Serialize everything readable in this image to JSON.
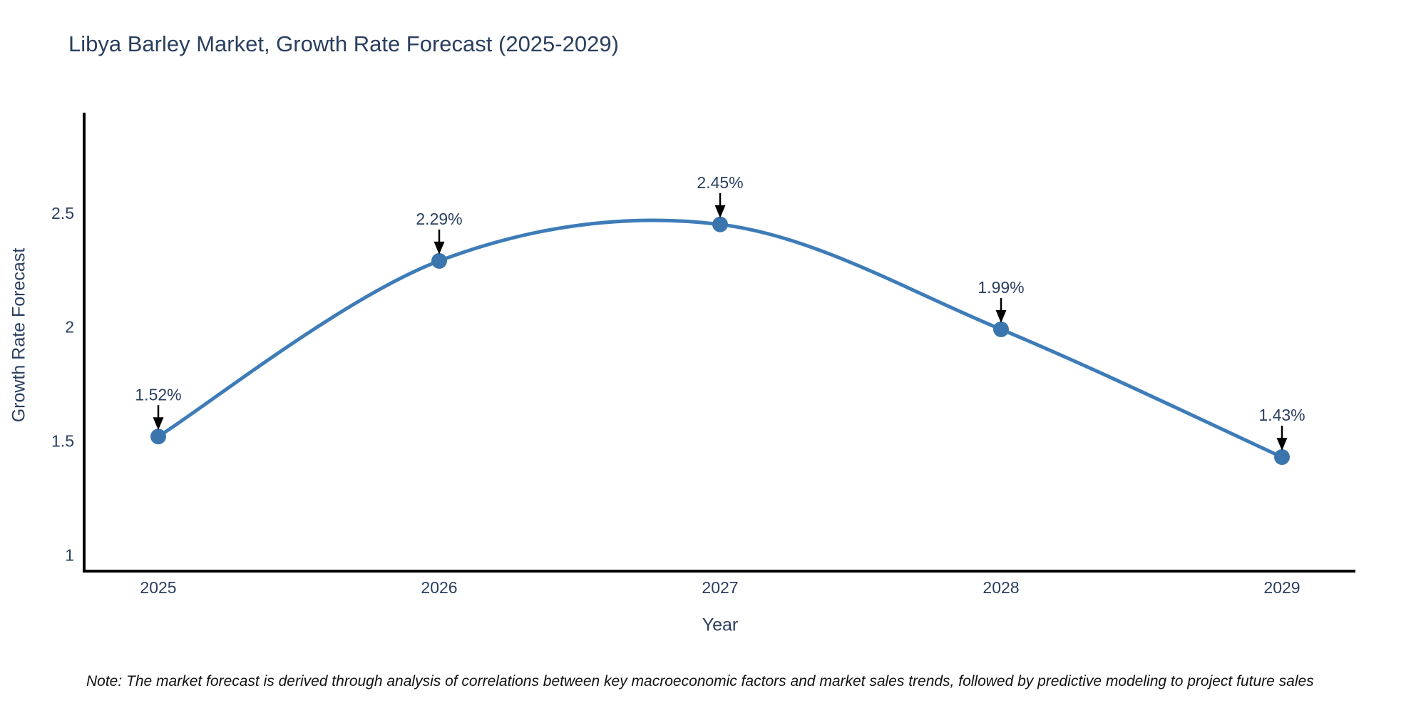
{
  "title": "Libya Barley Market, Growth Rate Forecast (2025-2029)",
  "note": "Note: The market forecast is derived through analysis of correlations between key macroeconomic factors and market sales trends, followed by predictive modeling to project future sales",
  "chart_data": {
    "type": "line",
    "title": "Libya Barley Market, Growth Rate Forecast (2025-2029)",
    "x": [
      "2025",
      "2026",
      "2027",
      "2028",
      "2029"
    ],
    "series": [
      {
        "name": "Growth Rate Forecast",
        "values": [
          1.52,
          2.29,
          2.45,
          1.99,
          1.43
        ]
      }
    ],
    "point_labels": [
      "1.52%",
      "2.29%",
      "2.45%",
      "1.99%",
      "1.43%"
    ],
    "xlabel": "Year",
    "ylabel": "Growth Rate Forecast",
    "yticks": [
      "1",
      "1.5",
      "2",
      "2.5"
    ],
    "ytick_values": [
      1,
      1.5,
      2,
      2.5
    ],
    "ylim": [
      0.93,
      2.94
    ],
    "line_shape": "spline",
    "grid": false,
    "legend": "none",
    "annotations_have_arrows": true,
    "colors": {
      "line": "#3E7CB8",
      "marker": "#3A76AD",
      "axis": "#000000",
      "text": "#2a3f5f",
      "annotation_arrow": "#000000",
      "note_text": "#111111",
      "background": "#ffffff"
    }
  }
}
